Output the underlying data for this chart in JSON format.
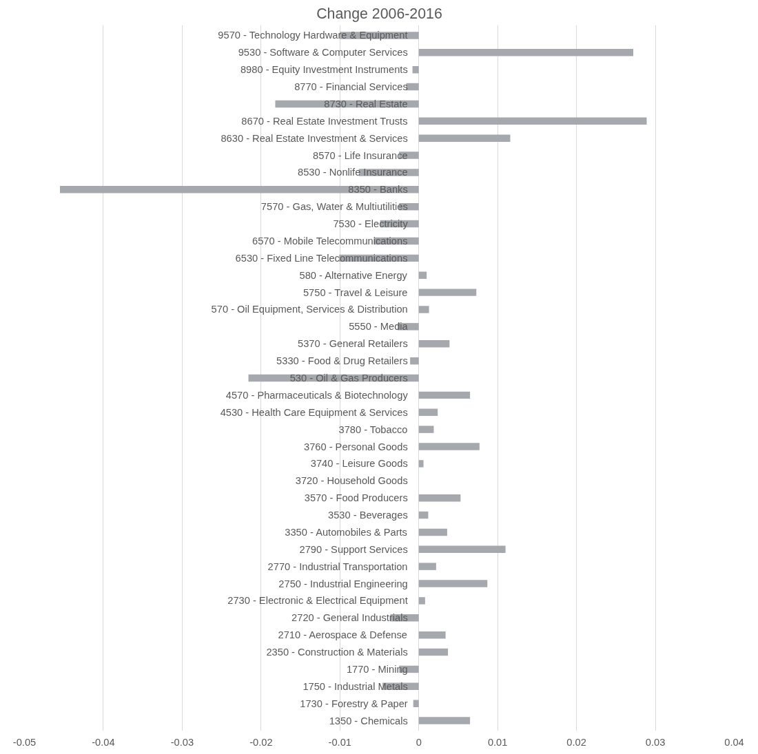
{
  "chart_data": {
    "type": "bar",
    "orientation": "horizontal",
    "title": "Change 2006-2016",
    "color": "#a5a9ae",
    "categories": [
      "9570 - Technology Hardware & Equipment",
      "9530 - Software & Computer Services",
      "8980 - Equity Investment Instruments",
      "8770 - Financial Services",
      "8730 - Real Estate",
      "8670 - Real Estate Investment Trusts",
      "8630 - Real Estate Investment & Services",
      "8570 - Life Insurance",
      "8530 - Nonlife Insurance",
      "8350 - Banks",
      "7570 - Gas, Water & Multiutilities",
      "7530 - Electricity",
      "6570 - Mobile Telecommunications",
      "6530 - Fixed Line Telecommunications",
      "580 - Alternative Energy",
      "5750 - Travel & Leisure",
      "570 - Oil Equipment, Services & Distribution",
      "5550 - Media",
      "5370 - General Retailers",
      "5330 - Food & Drug Retailers",
      "530 - Oil & Gas Producers",
      "4570 - Pharmaceuticals & Biotechnology",
      "4530 - Health Care Equipment & Services",
      "3780 - Tobacco",
      "3760 - Personal Goods",
      "3740 - Leisure Goods",
      "3720 - Household Goods",
      "3570 - Food Producers",
      "3530 - Beverages",
      "3350 - Automobiles & Parts",
      "2790 - Support Services",
      "2770 - Industrial Transportation",
      "2750 - Industrial Engineering",
      "2730 - Electronic & Electrical Equipment",
      "2720 - General Industrials",
      "2710 - Aerospace & Defense",
      "2350 - Construction & Materials",
      "1770 - Mining",
      "1750 - Industrial Metals",
      "1730 - Forestry & Paper",
      "1350 - Chemicals"
    ],
    "values": [
      -0.01,
      0.0272,
      -0.0008,
      -0.0016,
      -0.0182,
      0.0289,
      0.0116,
      -0.0025,
      -0.0076,
      -0.0455,
      -0.0025,
      -0.0049,
      -0.0057,
      -0.0101,
      0.001,
      0.0073,
      0.0013,
      -0.0027,
      0.0039,
      -0.0011,
      -0.0216,
      0.0065,
      0.0024,
      0.0019,
      0.0077,
      0.0006,
      0,
      0.0053,
      0.0012,
      0.0036,
      0.011,
      0.0022,
      0.0087,
      0.0008,
      -0.0036,
      0.0034,
      0.0037,
      -0.0025,
      -0.0046,
      -0.0007,
      0.0065
    ],
    "xlim": [
      -0.05,
      0.04
    ],
    "xticks": [
      -0.05,
      -0.04,
      -0.03,
      -0.02,
      -0.01,
      0,
      0.01,
      0.02,
      0.03,
      0.04
    ],
    "grid": "x"
  }
}
